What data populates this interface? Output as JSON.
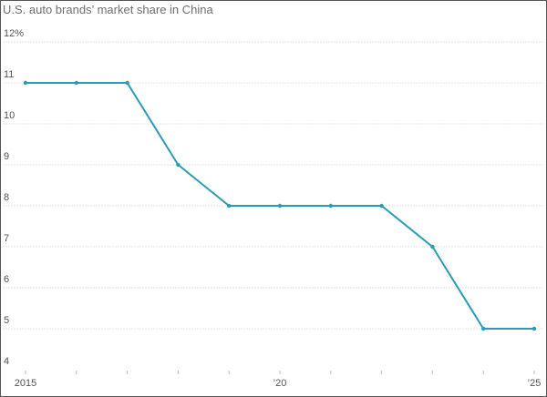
{
  "chart_data": {
    "type": "line",
    "title": "U.S. auto brands’ market share in China",
    "xlabel": "",
    "ylabel": "",
    "x": [
      2015,
      2016,
      2017,
      2018,
      2019,
      2020,
      2021,
      2022,
      2023,
      2024,
      2025
    ],
    "series": [
      {
        "values": [
          11,
          11,
          11,
          9,
          8,
          8,
          8,
          8,
          7,
          5,
          5
        ]
      }
    ],
    "ylim": [
      4,
      12
    ],
    "xlim": [
      2015,
      2025
    ],
    "y_ticks": [
      {
        "value": 12,
        "label": "12%"
      },
      {
        "value": 11,
        "label": "11"
      },
      {
        "value": 10,
        "label": "10"
      },
      {
        "value": 9,
        "label": "9"
      },
      {
        "value": 8,
        "label": "8"
      },
      {
        "value": 7,
        "label": "7"
      },
      {
        "value": 6,
        "label": "6"
      },
      {
        "value": 5,
        "label": "5"
      },
      {
        "value": 4,
        "label": "4"
      }
    ],
    "x_ticks": [
      {
        "value": 2015,
        "label": "2015"
      },
      {
        "value": 2020,
        "label": "’20"
      },
      {
        "value": 2025,
        "label": "’25"
      }
    ],
    "grid": true,
    "legend": "none",
    "line_color": "#2a9bb5",
    "grid_color": "#e3e3e3"
  }
}
